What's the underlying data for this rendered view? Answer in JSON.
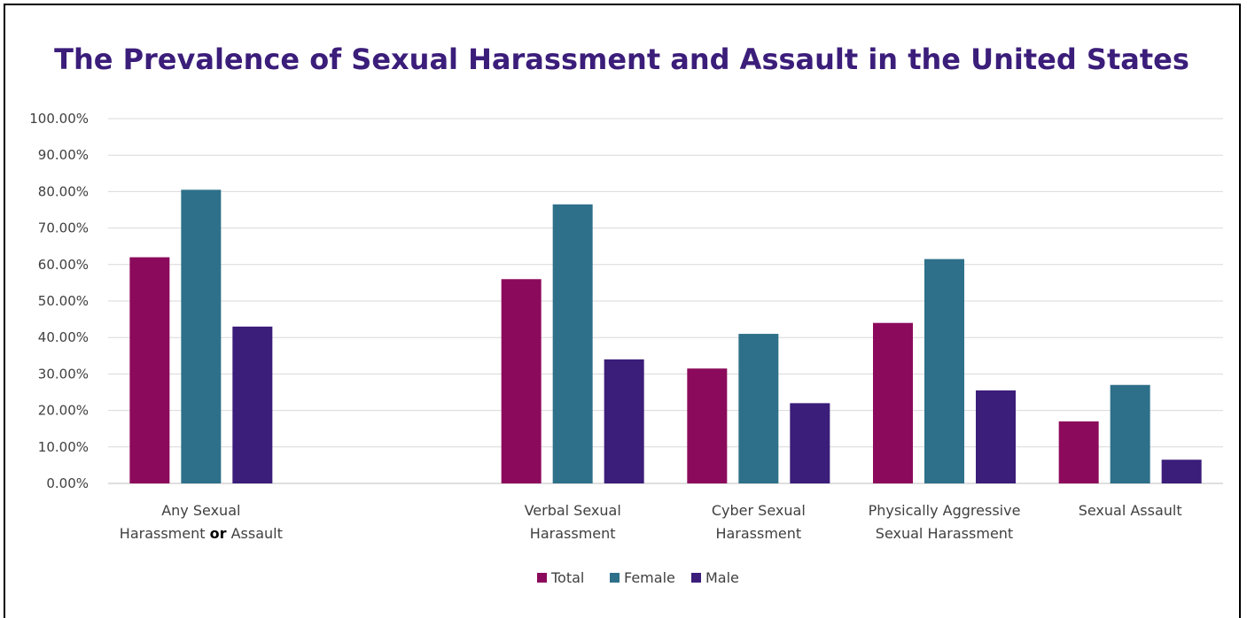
{
  "chart_data": {
    "type": "bar",
    "title": "The Prevalence of Sexual Harassment and Assault in the United States",
    "xlabel": "",
    "ylabel": "",
    "ylim": [
      0,
      100
    ],
    "ytick_labels": [
      "0.00%",
      "10.00%",
      "20.00%",
      "30.00%",
      "40.00%",
      "50.00%",
      "60.00%",
      "70.00%",
      "80.00%",
      "90.00%",
      "100.00%"
    ],
    "grid": true,
    "legend_position": "bottom",
    "categories": [
      {
        "lines": [
          [
            {
              "t": "Any Sexual",
              "b": false
            }
          ],
          [
            {
              "t": "Harassment ",
              "b": false
            },
            {
              "t": "or",
              "b": true
            },
            {
              "t": " Assault",
              "b": false
            }
          ]
        ]
      },
      {
        "lines": [
          [
            {
              "t": "",
              "b": false
            }
          ]
        ]
      },
      {
        "lines": [
          [
            {
              "t": "Verbal Sexual",
              "b": false
            }
          ],
          [
            {
              "t": "Harassment",
              "b": false
            }
          ]
        ]
      },
      {
        "lines": [
          [
            {
              "t": "Cyber Sexual",
              "b": false
            }
          ],
          [
            {
              "t": "Harassment",
              "b": false
            }
          ]
        ]
      },
      {
        "lines": [
          [
            {
              "t": "Physically Aggressive",
              "b": false
            }
          ],
          [
            {
              "t": "Sexual Harassment",
              "b": false
            }
          ]
        ]
      },
      {
        "lines": [
          [
            {
              "t": "Sexual Assault",
              "b": false
            }
          ]
        ]
      }
    ],
    "series": [
      {
        "name": "Total",
        "color": "#8c0a5c",
        "values": [
          62.0,
          null,
          56.0,
          31.5,
          44.0,
          17.0
        ]
      },
      {
        "name": "Female",
        "color": "#2e7089",
        "values": [
          80.5,
          null,
          76.5,
          41.0,
          61.5,
          27.0
        ]
      },
      {
        "name": "Male",
        "color": "#3b1d7a",
        "values": [
          43.0,
          null,
          34.0,
          22.0,
          25.5,
          6.5
        ]
      }
    ]
  }
}
